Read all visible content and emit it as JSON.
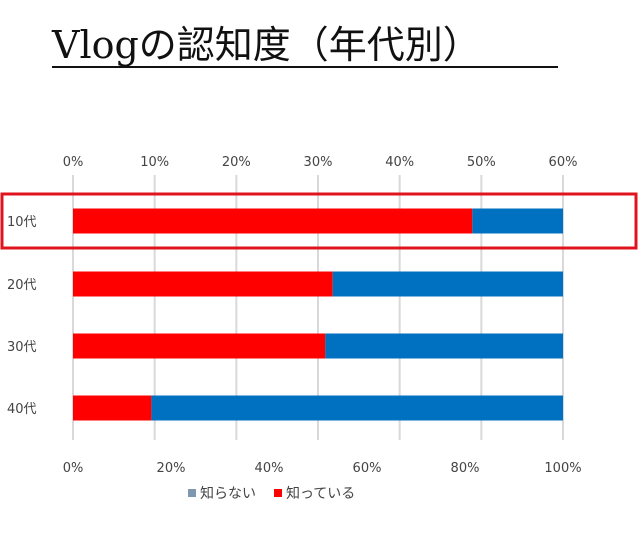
{
  "title": "Vlogの認知度（年代別）",
  "colors": {
    "red": "#ff0000",
    "blue": "#0070c0",
    "grid": "#d9d9d9",
    "highlight": "#e0141e"
  },
  "chart_data": {
    "type": "bar",
    "orientation": "horizontal",
    "stacked": true,
    "categories": [
      "10代",
      "20代",
      "30代",
      "40代"
    ],
    "highlighted_category": "10代",
    "series": [
      {
        "name": "知っている",
        "color": "#ff0000",
        "values": [
          81.5,
          53,
          51.5,
          16
        ]
      },
      {
        "name": "知らない",
        "color": "#0070c0",
        "values": [
          18.5,
          47,
          48.5,
          84
        ]
      }
    ],
    "top_axis": {
      "range": [
        0,
        60
      ],
      "ticks": [
        "0%",
        "10%",
        "20%",
        "30%",
        "40%",
        "50%",
        "60%"
      ]
    },
    "bottom_axis": {
      "range": [
        0,
        100
      ],
      "ticks": [
        "0%",
        "20%",
        "40%",
        "60%",
        "80%",
        "100%"
      ]
    },
    "grid": true,
    "legend": {
      "position": "bottom",
      "items": [
        {
          "label": "知らない",
          "color": "#8097b1"
        },
        {
          "label": "知っている",
          "color": "#ff0000"
        }
      ]
    }
  }
}
